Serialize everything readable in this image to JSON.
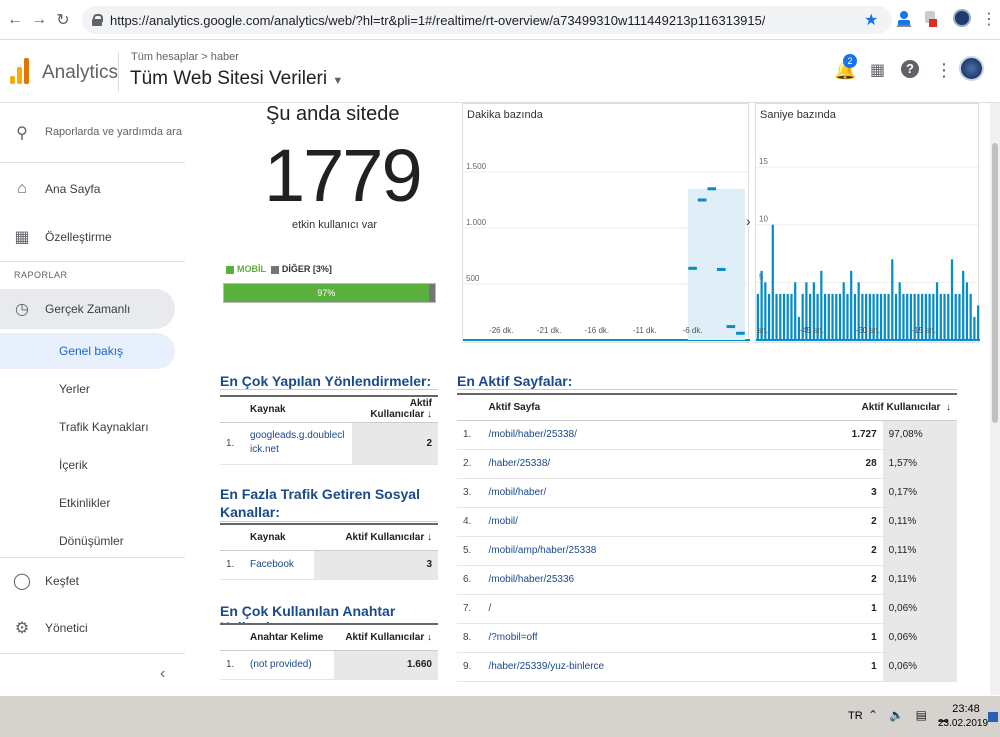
{
  "browser": {
    "url": "https://analytics.google.com/analytics/web/?hl=tr&pli=1#/realtime/rt-overview/a73499310w111449213p116313915/"
  },
  "header": {
    "app_name": "Analytics",
    "breadcrumb": "Tüm hesaplar > haber",
    "property": "Tüm Web Sitesi Verileri",
    "notification_count": "2"
  },
  "sidebar": {
    "search": "Raporlarda ve yardımda ara",
    "home": "Ana Sayfa",
    "customize": "Özelleştirme",
    "section": "RAPORLAR",
    "realtime": "Gerçek Zamanlı",
    "sub": [
      "Genel bakış",
      "Yerler",
      "Trafik Kaynakları",
      "İçerik",
      "Etkinlikler",
      "Dönüşümler"
    ],
    "discover": "Keşfet",
    "admin": "Yönetici"
  },
  "overview": {
    "title": "Şu anda sitede",
    "count": "1779",
    "subtitle": "etkin kullanıcı var",
    "legend_mobile": "MOBİL",
    "legend_other": "DİĞER [3%]",
    "mobile_pct_label": "97%",
    "mobile_fraction": 0.97,
    "color_mobile": "#5ab03d",
    "color_other": "#757575"
  },
  "chart_data": [
    {
      "type": "bar",
      "title": "Dakika bazında",
      "ylim": [
        0,
        1750
      ],
      "yticks": [
        "500",
        "1.000",
        "1.500"
      ],
      "ytick_values": [
        500,
        1000,
        1500
      ],
      "xtick_labels": [
        "-26 dk.",
        "-21 dk.",
        "-16 dk.",
        "-11 dk.",
        "-6 dk."
      ],
      "xtick_positions": [
        -26,
        -21,
        -16,
        -11,
        -6
      ],
      "x_range": [
        -30,
        0
      ],
      "x": [
        -6,
        -5,
        -4,
        -3,
        -2,
        -1
      ],
      "values": [
        640,
        1250,
        1350,
        630,
        120,
        60
      ],
      "color": "#058dc7",
      "fill": "#e0eef8"
    },
    {
      "type": "bar",
      "title": "Saniye bazında",
      "ylim": [
        0,
        17
      ],
      "yticks": [
        "5",
        "10",
        "15"
      ],
      "ytick_values": [
        5,
        10,
        15
      ],
      "xtick_labels": [
        "-60 sn.",
        "-45 sn.",
        "-30 sn.",
        "-15 sn."
      ],
      "xtick_positions": [
        -60,
        -45,
        -30,
        -15
      ],
      "x_range": [
        -60,
        0
      ],
      "values": [
        4,
        6,
        5,
        4,
        10,
        4,
        4,
        4,
        4,
        4,
        5,
        2,
        4,
        5,
        4,
        5,
        4,
        6,
        4,
        4,
        4,
        4,
        4,
        5,
        4,
        6,
        4,
        5,
        4,
        4,
        4,
        4,
        4,
        4,
        4,
        4,
        7,
        4,
        5,
        4,
        4,
        4,
        4,
        4,
        4,
        4,
        4,
        4,
        5,
        4,
        4,
        4,
        7,
        4,
        4,
        6,
        5,
        4,
        2,
        3
      ],
      "color": "#058dc7"
    }
  ],
  "referrals": {
    "title": "En Çok Yapılan Yönlendirmeler:",
    "col_source": "Kaynak",
    "col_users": "Aktif Kullanıcılar",
    "rows": [
      {
        "idx": "1.",
        "source": "googleads.g.doubleclick.net",
        "users": "2"
      }
    ]
  },
  "social": {
    "title": "En Fazla Trafik Getiren Sosyal Kanallar:",
    "col_source": "Kaynak",
    "col_users": "Aktif Kullanıcılar",
    "rows": [
      {
        "idx": "1.",
        "source": "Facebook",
        "users": "3"
      }
    ]
  },
  "keywords": {
    "title": "En Çok Kullanılan Anahtar Kelimeler:",
    "col_keyword": "Anahtar Kelime",
    "col_users": "Aktif Kullanıcılar",
    "rows": [
      {
        "idx": "1.",
        "keyword": "(not provided)",
        "users": "1.660"
      }
    ]
  },
  "pages": {
    "title": "En Aktif Sayfalar:",
    "col_page": "Aktif Sayfa",
    "col_users": "Aktif Kullanıcılar",
    "rows": [
      {
        "idx": "1.",
        "page": "/mobil/haber/25338/",
        "users": "1.727",
        "pct": "97,08%"
      },
      {
        "idx": "2.",
        "page": "/haber/25338/",
        "users": "28",
        "pct": "1,57%"
      },
      {
        "idx": "3.",
        "page": "/mobil/haber/",
        "users": "3",
        "pct": "0,17%"
      },
      {
        "idx": "4.",
        "page": "/mobil/",
        "users": "2",
        "pct": "0,11%"
      },
      {
        "idx": "5.",
        "page": "/mobil/amp/haber/25338",
        "users": "2",
        "pct": "0,11%"
      },
      {
        "idx": "6.",
        "page": "/mobil/haber/25336",
        "users": "2",
        "pct": "0,11%"
      },
      {
        "idx": "7.",
        "page": "/",
        "users": "1",
        "pct": "0,06%"
      },
      {
        "idx": "8.",
        "page": "/?mobil=off",
        "users": "1",
        "pct": "0,06%"
      },
      {
        "idx": "9.",
        "page": "/haber/25339/yuz-binlerce",
        "users": "1",
        "pct": "0,06%"
      }
    ]
  },
  "taskbar": {
    "lang": "TR",
    "time": "23:48",
    "date": "23.02.2019"
  }
}
